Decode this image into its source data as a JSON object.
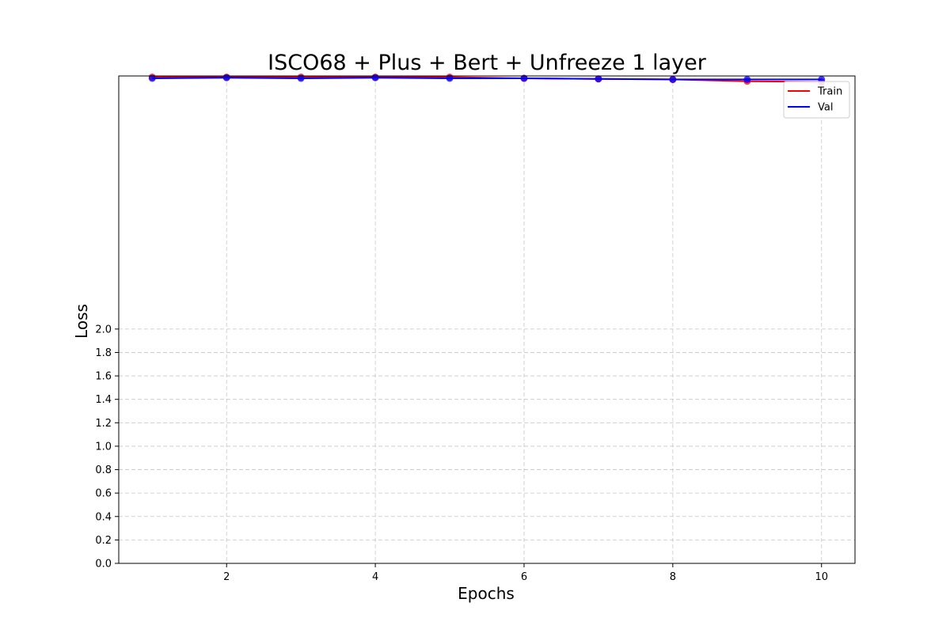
{
  "chart_data": {
    "type": "line",
    "title": "ISCO68 + Plus + Bert + Unfreeze 1 layer",
    "xlabel": "Epochs",
    "ylabel": "Loss",
    "x": [
      1,
      2,
      3,
      4,
      5,
      6,
      7,
      8,
      9,
      10
    ],
    "series": [
      {
        "name": "Train",
        "color": "#ff0000",
        "values": [
          4.15,
          4.15,
          4.15,
          4.15,
          4.15,
          4.14,
          4.135,
          4.13,
          4.115,
          4.11
        ]
      },
      {
        "name": "Val",
        "color": "#0000ff",
        "values": [
          4.14,
          4.145,
          4.14,
          4.145,
          4.14,
          4.14,
          4.135,
          4.13,
          4.13,
          4.13
        ]
      }
    ],
    "xticks": [
      2,
      4,
      6,
      8,
      10
    ],
    "yticks": [
      0.0,
      0.2,
      0.4,
      0.6,
      0.8,
      1.0,
      1.2,
      1.4,
      1.6,
      1.8,
      2.0
    ],
    "ytick_labels": [
      "0.0",
      "0.2",
      "0.4",
      "0.6",
      "0.8",
      "1.0",
      "1.2",
      "1.4",
      "1.6",
      "1.8",
      "2.0"
    ],
    "xlim": [
      0.55,
      10.45
    ],
    "ylim": [
      0,
      4.16
    ],
    "grid": true,
    "legend_position": "top-right"
  }
}
